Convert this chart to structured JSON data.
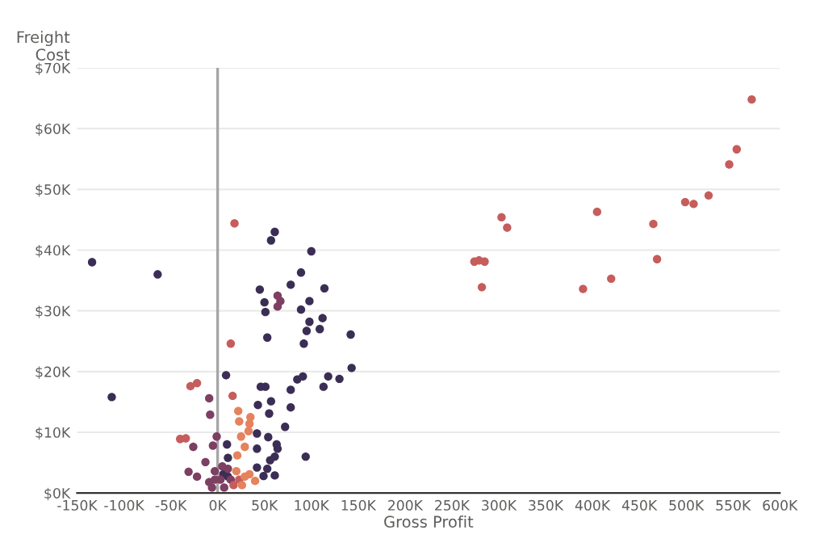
{
  "chart_data": {
    "type": "scatter",
    "xlabel": "Gross Profit",
    "ylabel": "Freight Cost",
    "xlim": [
      -150000,
      600000
    ],
    "ylim": [
      0,
      70000
    ],
    "xticks": [
      {
        "value": -150000,
        "label": "-150K"
      },
      {
        "value": -100000,
        "label": "-100K"
      },
      {
        "value": -50000,
        "label": "-50K"
      },
      {
        "value": 0,
        "label": "0K"
      },
      {
        "value": 50000,
        "label": "50K"
      },
      {
        "value": 100000,
        "label": "100K"
      },
      {
        "value": 150000,
        "label": "150K"
      },
      {
        "value": 200000,
        "label": "200K"
      },
      {
        "value": 250000,
        "label": "250K"
      },
      {
        "value": 300000,
        "label": "300K"
      },
      {
        "value": 350000,
        "label": "350K"
      },
      {
        "value": 400000,
        "label": "400K"
      },
      {
        "value": 450000,
        "label": "450K"
      },
      {
        "value": 500000,
        "label": "500K"
      },
      {
        "value": 550000,
        "label": "550K"
      },
      {
        "value": 600000,
        "label": "600K"
      }
    ],
    "yticks": [
      {
        "value": 0,
        "label": "$0K"
      },
      {
        "value": 10000,
        "label": "$10K"
      },
      {
        "value": 20000,
        "label": "$20K"
      },
      {
        "value": 30000,
        "label": "$30K"
      },
      {
        "value": 40000,
        "label": "$40K"
      },
      {
        "value": 50000,
        "label": "$50K"
      },
      {
        "value": 60000,
        "label": "$60K"
      },
      {
        "value": 70000,
        "label": "$70K"
      }
    ],
    "grid": "y",
    "marker": "circle",
    "ref_lines": [
      {
        "axis": "x",
        "value": 0,
        "color": "#a6a6a6"
      }
    ],
    "series": [
      {
        "color": "#3b2e55",
        "x": [
          -134000,
          -64000,
          -113000,
          61000,
          57000,
          100000,
          89000,
          45000,
          50000,
          51000,
          78000,
          114000,
          98000,
          89000,
          98000,
          112000,
          95000,
          109000,
          142000,
          53000,
          92000,
          9000,
          143000,
          85000,
          91000,
          118000,
          130000,
          113000,
          46000,
          51000,
          78000,
          57000,
          43000,
          78000,
          55000,
          72000,
          42000,
          54000,
          63000,
          64000,
          42000,
          94000,
          61000,
          56000,
          42000,
          53000,
          61000,
          49000,
          10000,
          11000,
          6000,
          9000,
          11000
        ],
        "values": [
          38000,
          36000,
          15800,
          43000,
          41600,
          39800,
          36300,
          33500,
          31400,
          29800,
          34300,
          33700,
          31600,
          30200,
          28200,
          28800,
          26700,
          27000,
          26100,
          25600,
          24600,
          19400,
          20600,
          18700,
          19200,
          19200,
          18800,
          17500,
          17500,
          17500,
          17000,
          15100,
          14500,
          14100,
          13100,
          10900,
          9800,
          9200,
          8000,
          7300,
          7300,
          6000,
          6000,
          5400,
          4200,
          4000,
          2900,
          2800,
          8000,
          5800,
          3100,
          null,
          2700
        ]
      },
      {
        "color": "#7d3f62",
        "x": [
          64000,
          67000,
          64000,
          -8000,
          -9000,
          -26000,
          -13000,
          -31000,
          -22000,
          -1000,
          -5000,
          0,
          3000,
          -3000,
          7000,
          -6000,
          -9000,
          11000,
          5000,
          -3000,
          14000
        ],
        "values": [
          32500,
          31600,
          30700,
          12900,
          15600,
          7600,
          5100,
          3500,
          2700,
          9300,
          7800,
          null,
          2200,
          2200,
          900,
          900,
          1800,
          4000,
          4400,
          3600,
          2200
        ]
      },
      {
        "color": "#c65c5c",
        "x": [
          18000,
          14000,
          16000,
          -29000,
          -22000,
          -40000,
          -34000,
          570000,
          554000,
          546000,
          524000,
          499000,
          508000,
          465000,
          469000,
          405000,
          420000,
          390000,
          303000,
          309000,
          274000,
          279000,
          285000,
          282000,
          17000,
          23000
        ],
        "values": [
          44400,
          24600,
          16000,
          17600,
          18100,
          8900,
          9000,
          64800,
          56600,
          54100,
          49000,
          47900,
          47600,
          44300,
          38500,
          46300,
          35300,
          33600,
          45400,
          43700,
          38100,
          38300,
          38100,
          33900,
          1300,
          2200
        ]
      },
      {
        "color": "#e4835e",
        "x": [
          22000,
          35000,
          34000,
          23000,
          33000,
          25000,
          29000,
          21000,
          29000,
          26000,
          20000,
          34000,
          40000
        ],
        "values": [
          13500,
          12500,
          11400,
          11800,
          10200,
          9300,
          7600,
          6200,
          2700,
          1300,
          3600,
          3100,
          2000
        ]
      }
    ]
  }
}
